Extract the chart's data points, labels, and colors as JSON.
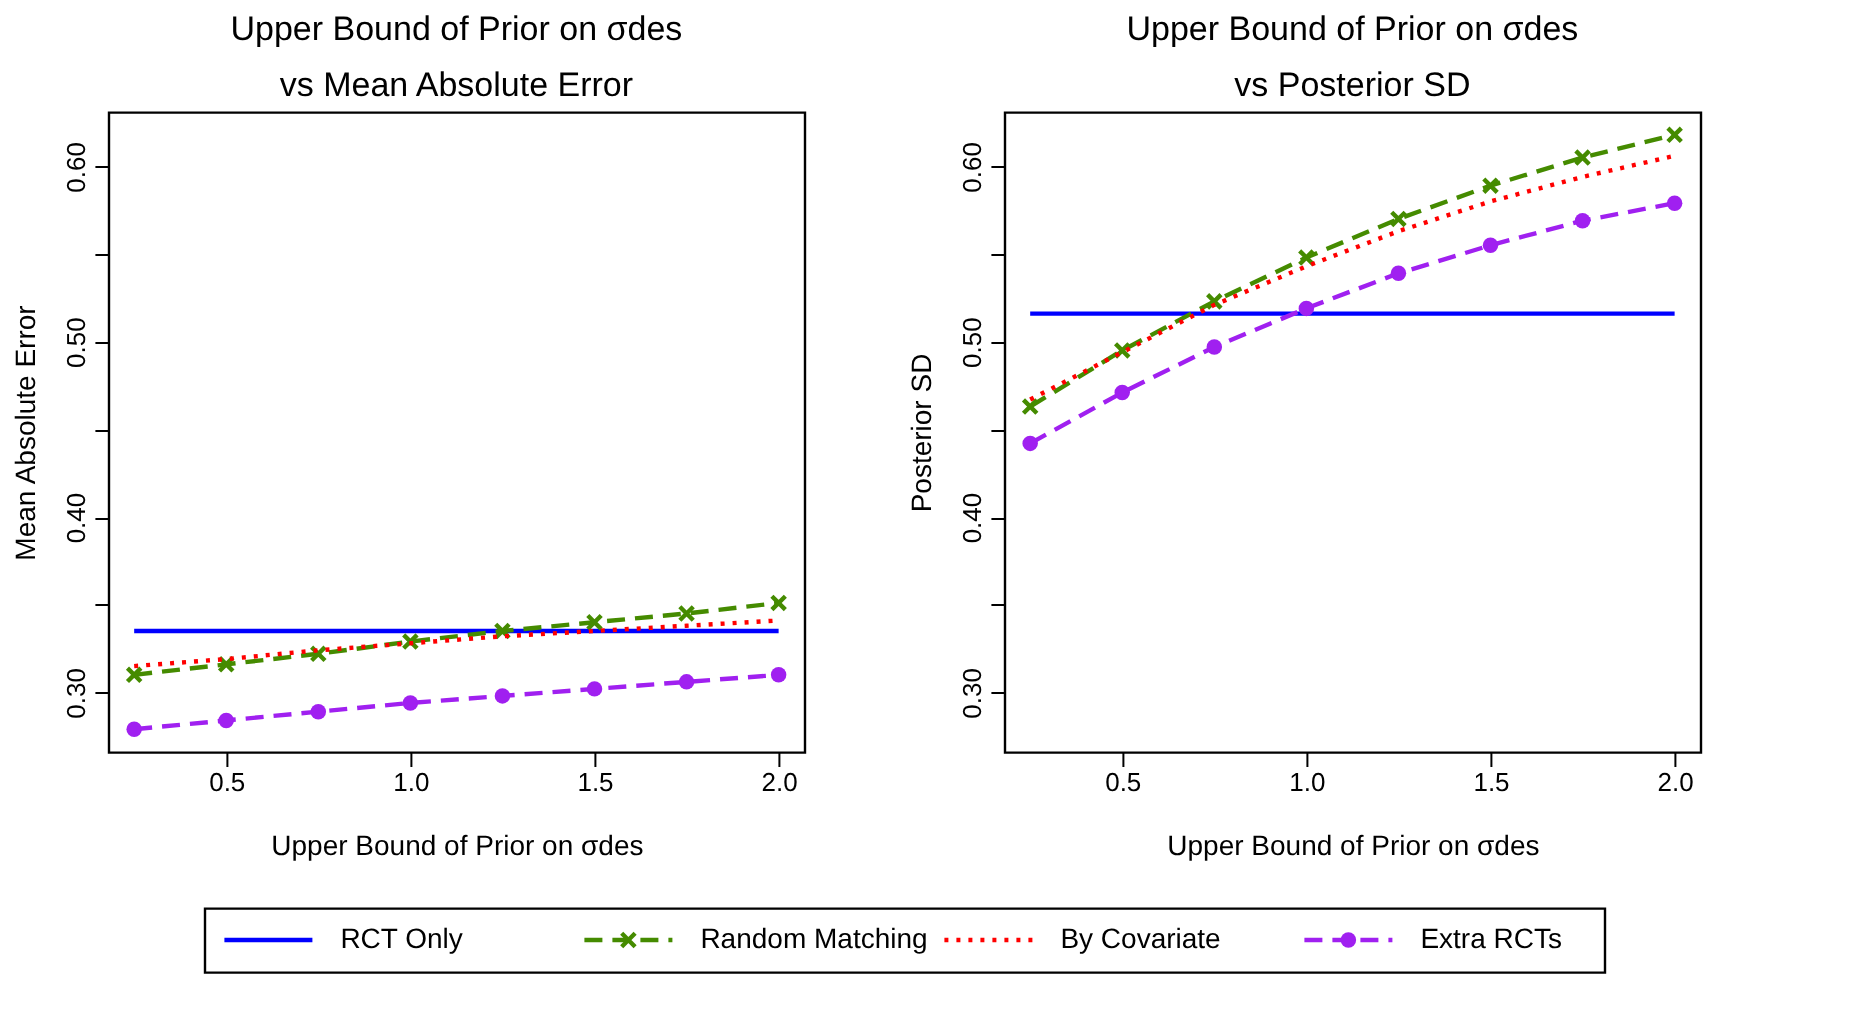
{
  "chart_data": [
    {
      "type": "line",
      "title": "Upper Bound of Prior on σdes\nvs Mean Absolute Error",
      "xlabel": "Upper Bound of Prior on σdes",
      "ylabel": "Mean Absolute Error",
      "x": [
        0.25,
        0.5,
        0.75,
        1.0,
        1.25,
        1.5,
        1.75,
        2.0
      ],
      "xlim": [
        0.18,
        2.07
      ],
      "xticks": [
        {
          "value": 0.5,
          "label": "0.5"
        },
        {
          "value": 1.0,
          "label": "1.0"
        },
        {
          "value": 1.5,
          "label": "1.5"
        },
        {
          "value": 2.0,
          "label": "2.0"
        }
      ],
      "ylim": [
        0.266,
        0.631
      ],
      "yticks": [
        {
          "value": 0.3,
          "label": "0.30"
        },
        {
          "value": 0.35,
          "label": null
        },
        {
          "value": 0.4,
          "label": "0.40"
        },
        {
          "value": 0.45,
          "label": null
        },
        {
          "value": 0.5,
          "label": "0.50"
        },
        {
          "value": 0.55,
          "label": null
        },
        {
          "value": 0.6,
          "label": "0.60"
        }
      ],
      "grid": false,
      "legend": "bottom",
      "series": [
        {
          "name": "RCT Only",
          "color": "#0000ff",
          "marker": "none",
          "line_style": "solid",
          "values": [
            0.335,
            0.335,
            0.335,
            0.335,
            0.335,
            0.335,
            0.335,
            0.335
          ]
        },
        {
          "name": "Random Matching",
          "color": "#458b00",
          "marker": "cross",
          "line_style": "dashed",
          "values": [
            0.31,
            0.316,
            0.322,
            0.329,
            0.335,
            0.34,
            0.345,
            0.351
          ]
        },
        {
          "name": "By Covariate",
          "color": "#ff0000",
          "marker": "none",
          "line_style": "dotted",
          "values": [
            0.315,
            0.319,
            0.324,
            0.328,
            0.332,
            0.335,
            0.338,
            0.341
          ]
        },
        {
          "name": "Extra RCTs",
          "color": "#a020f0",
          "marker": "circle",
          "line_style": "dashed",
          "values": [
            0.279,
            0.284,
            0.289,
            0.294,
            0.298,
            0.302,
            0.306,
            0.31
          ]
        }
      ]
    },
    {
      "type": "line",
      "title": "Upper Bound of Prior on σdes\nvs Posterior SD",
      "xlabel": "Upper Bound of Prior on σdes",
      "ylabel": "Posterior SD",
      "x": [
        0.25,
        0.5,
        0.75,
        1.0,
        1.25,
        1.5,
        1.75,
        2.0
      ],
      "xlim": [
        0.18,
        2.07
      ],
      "xticks": [
        {
          "value": 0.5,
          "label": "0.5"
        },
        {
          "value": 1.0,
          "label": "1.0"
        },
        {
          "value": 1.5,
          "label": "1.5"
        },
        {
          "value": 2.0,
          "label": "2.0"
        }
      ],
      "ylim": [
        0.266,
        0.631
      ],
      "yticks": [
        {
          "value": 0.3,
          "label": "0.30"
        },
        {
          "value": 0.35,
          "label": null
        },
        {
          "value": 0.4,
          "label": "0.40"
        },
        {
          "value": 0.45,
          "label": null
        },
        {
          "value": 0.5,
          "label": "0.50"
        },
        {
          "value": 0.55,
          "label": null
        },
        {
          "value": 0.6,
          "label": "0.60"
        }
      ],
      "grid": false,
      "series": [
        {
          "color": "#0000ff",
          "marker": "none",
          "line_style": "solid",
          "values": [
            0.516,
            0.516,
            0.516,
            0.516,
            0.516,
            0.516,
            0.516,
            0.516
          ]
        },
        {
          "color": "#458b00",
          "marker": "cross",
          "line_style": "dashed",
          "values": [
            0.463,
            0.495,
            0.523,
            0.548,
            0.57,
            0.589,
            0.605,
            0.618
          ]
        },
        {
          "color": "#ff0000",
          "marker": "none",
          "line_style": "dotted",
          "values": [
            0.467,
            0.494,
            0.521,
            0.543,
            0.563,
            0.58,
            0.594,
            0.606
          ]
        },
        {
          "color": "#a020f0",
          "marker": "circle",
          "line_style": "dashed",
          "values": [
            0.442,
            0.471,
            0.497,
            0.519,
            0.539,
            0.555,
            0.569,
            0.579
          ]
        }
      ]
    }
  ]
}
